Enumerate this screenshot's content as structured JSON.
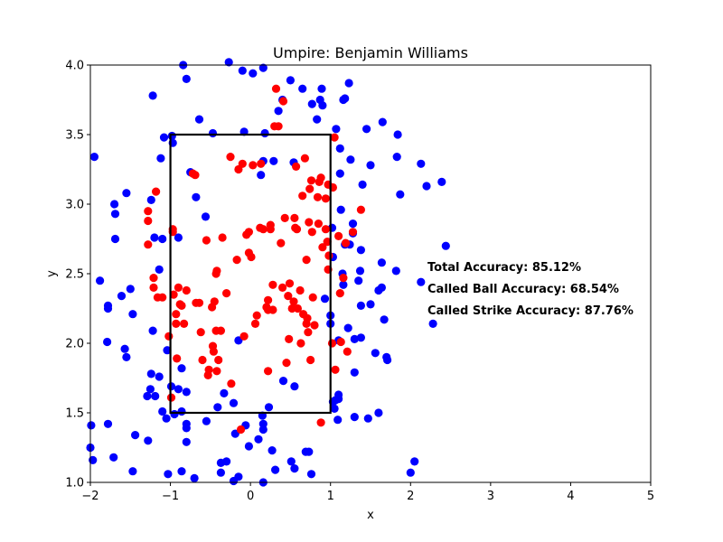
{
  "chart_data": {
    "type": "scatter",
    "title": "Umpire: Benjamin Williams",
    "xlabel": "x",
    "ylabel": "y",
    "xlim": [
      -2,
      5
    ],
    "ylim": [
      1.0,
      4.0
    ],
    "xticks": [
      "−2",
      "−1",
      "0",
      "1",
      "2",
      "3",
      "4",
      "5"
    ],
    "yticks": [
      "1.0",
      "1.5",
      "2.0",
      "2.5",
      "3.0",
      "3.5",
      "4.0"
    ],
    "grid": false,
    "strike_zone": {
      "x": [
        -1,
        1
      ],
      "y": [
        1.5,
        3.5
      ],
      "color": "#000000"
    },
    "annotations": [
      "Total Accuracy: 85.12%",
      "Called Ball Accuracy: 68.54%",
      "Called Strike Accuracy: 87.76%"
    ],
    "series": [
      {
        "color": "#0000ff",
        "points": [
          [
            -1.95,
            3.34
          ],
          [
            -1.88,
            2.45
          ],
          [
            -1.99,
            1.41
          ],
          [
            -2.0,
            1.25
          ],
          [
            -1.97,
            1.16
          ],
          [
            -1.78,
            2.27
          ],
          [
            -1.78,
            2.25
          ],
          [
            -1.79,
            2.01
          ],
          [
            -1.78,
            1.42
          ],
          [
            -1.71,
            1.18
          ],
          [
            -1.7,
            3.0
          ],
          [
            -1.69,
            2.93
          ],
          [
            -1.69,
            2.75
          ],
          [
            -1.61,
            2.34
          ],
          [
            -1.57,
            1.96
          ],
          [
            -1.55,
            1.9
          ],
          [
            -1.55,
            3.08
          ],
          [
            -1.5,
            2.39
          ],
          [
            -1.47,
            2.21
          ],
          [
            -1.44,
            1.34
          ],
          [
            -1.47,
            1.08
          ],
          [
            -1.28,
            1.3
          ],
          [
            -1.29,
            1.62
          ],
          [
            -1.25,
            1.67
          ],
          [
            -1.24,
            1.78
          ],
          [
            -1.19,
            1.62
          ],
          [
            -1.24,
            3.03
          ],
          [
            -1.22,
            3.78
          ],
          [
            -1.2,
            2.76
          ],
          [
            -1.22,
            2.09
          ],
          [
            -1.14,
            2.53
          ],
          [
            -1.14,
            1.76
          ],
          [
            -1.12,
            3.33
          ],
          [
            -1.1,
            2.75
          ],
          [
            -1.08,
            3.48
          ],
          [
            -1.1,
            1.51
          ],
          [
            -1.05,
            1.46
          ],
          [
            -1.04,
            1.95
          ],
          [
            -1.03,
            1.06
          ],
          [
            -0.99,
            1.69
          ],
          [
            -0.98,
            3.49
          ],
          [
            -0.97,
            3.44
          ],
          [
            -0.95,
            1.49
          ],
          [
            -0.9,
            2.76
          ],
          [
            -0.9,
            1.67
          ],
          [
            -0.86,
            1.82
          ],
          [
            -0.86,
            1.08
          ],
          [
            -0.86,
            1.51
          ],
          [
            -0.84,
            4.0
          ],
          [
            -0.8,
            1.65
          ],
          [
            -0.8,
            1.42
          ],
          [
            -0.8,
            1.39
          ],
          [
            -0.8,
            1.29
          ],
          [
            -0.8,
            3.9
          ],
          [
            -0.75,
            3.23
          ],
          [
            -0.7,
            1.03
          ],
          [
            -0.68,
            3.05
          ],
          [
            -0.64,
            3.61
          ],
          [
            -0.56,
            2.91
          ],
          [
            -0.55,
            1.44
          ],
          [
            -0.47,
            3.51
          ],
          [
            -0.41,
            1.54
          ],
          [
            -0.37,
            1.14
          ],
          [
            -0.37,
            1.07
          ],
          [
            -0.33,
            1.64
          ],
          [
            -0.3,
            1.15
          ],
          [
            -0.27,
            4.02
          ],
          [
            -0.21,
            1.01
          ],
          [
            -0.21,
            1.57
          ],
          [
            -0.19,
            1.35
          ],
          [
            -0.15,
            2.02
          ],
          [
            -0.15,
            1.04
          ],
          [
            -0.1,
            3.96
          ],
          [
            -0.08,
            3.52
          ],
          [
            -0.06,
            1.41
          ],
          [
            -0.02,
            1.26
          ],
          [
            0.03,
            3.94
          ],
          [
            0.1,
            1.31
          ],
          [
            0.13,
            3.21
          ],
          [
            0.15,
            1.48
          ],
          [
            0.16,
            1.42
          ],
          [
            0.16,
            1.38
          ],
          [
            0.16,
            3.31
          ],
          [
            0.16,
            3.98
          ],
          [
            0.16,
            1.0
          ],
          [
            0.18,
            3.51
          ],
          [
            0.23,
            1.54
          ],
          [
            0.27,
            1.23
          ],
          [
            0.29,
            3.31
          ],
          [
            0.31,
            1.09
          ],
          [
            0.35,
            3.67
          ],
          [
            0.4,
            3.75
          ],
          [
            0.41,
            1.73
          ],
          [
            0.5,
            3.89
          ],
          [
            0.51,
            1.15
          ],
          [
            0.54,
            3.3
          ],
          [
            0.55,
            1.1
          ],
          [
            0.55,
            1.69
          ],
          [
            0.65,
            3.83
          ],
          [
            0.69,
            1.22
          ],
          [
            0.73,
            1.22
          ],
          [
            0.76,
            1.06
          ],
          [
            0.77,
            3.72
          ],
          [
            0.83,
            3.61
          ],
          [
            0.87,
            3.75
          ],
          [
            0.89,
            3.83
          ],
          [
            0.9,
            3.71
          ],
          [
            0.93,
            2.32
          ],
          [
            1.0,
            2.14
          ],
          [
            1.0,
            2.2
          ],
          [
            1.02,
            2.83
          ],
          [
            1.03,
            2.62
          ],
          [
            1.03,
            1.58
          ],
          [
            1.05,
            1.53
          ],
          [
            1.06,
            1.59
          ],
          [
            1.07,
            3.54
          ],
          [
            1.09,
            1.45
          ],
          [
            1.1,
            2.02
          ],
          [
            1.1,
            1.6
          ],
          [
            1.1,
            1.63
          ],
          [
            1.12,
            3.4
          ],
          [
            1.12,
            3.22
          ],
          [
            1.13,
            2.96
          ],
          [
            1.15,
            2.5
          ],
          [
            1.16,
            2.42
          ],
          [
            1.16,
            3.75
          ],
          [
            1.18,
            3.76
          ],
          [
            1.18,
            2.71
          ],
          [
            1.22,
            2.11
          ],
          [
            1.23,
            3.87
          ],
          [
            1.24,
            2.71
          ],
          [
            1.25,
            3.32
          ],
          [
            1.28,
            2.86
          ],
          [
            1.28,
            2.79
          ],
          [
            1.3,
            2.03
          ],
          [
            1.3,
            1.79
          ],
          [
            1.3,
            1.47
          ],
          [
            1.35,
            2.45
          ],
          [
            1.37,
            2.52
          ],
          [
            1.38,
            2.04
          ],
          [
            1.38,
            2.27
          ],
          [
            1.38,
            2.67
          ],
          [
            1.4,
            3.14
          ],
          [
            1.45,
            3.54
          ],
          [
            1.47,
            1.46
          ],
          [
            1.5,
            3.28
          ],
          [
            1.5,
            2.28
          ],
          [
            1.56,
            1.93
          ],
          [
            1.6,
            1.5
          ],
          [
            1.6,
            2.38
          ],
          [
            1.64,
            2.4
          ],
          [
            1.64,
            2.58
          ],
          [
            1.65,
            3.59
          ],
          [
            1.67,
            2.17
          ],
          [
            1.7,
            1.9
          ],
          [
            1.71,
            1.88
          ],
          [
            1.82,
            2.52
          ],
          [
            1.83,
            3.34
          ],
          [
            1.84,
            3.5
          ],
          [
            1.87,
            3.07
          ],
          [
            2.0,
            1.07
          ],
          [
            2.05,
            1.15
          ],
          [
            2.13,
            3.29
          ],
          [
            2.13,
            2.44
          ],
          [
            2.2,
            3.13
          ],
          [
            2.28,
            2.14
          ],
          [
            2.39,
            3.16
          ],
          [
            2.44,
            2.7
          ]
        ]
      },
      {
        "color": "#ff0000",
        "points": [
          [
            -1.28,
            2.71
          ],
          [
            -1.28,
            2.88
          ],
          [
            -1.28,
            2.95
          ],
          [
            -1.21,
            2.4
          ],
          [
            -1.21,
            2.47
          ],
          [
            -1.18,
            3.09
          ],
          [
            -1.16,
            2.33
          ],
          [
            -1.1,
            2.33
          ],
          [
            -1.02,
            2.05
          ],
          [
            -0.99,
            1.61
          ],
          [
            -0.97,
            2.82
          ],
          [
            -0.97,
            2.8
          ],
          [
            -0.96,
            2.35
          ],
          [
            -0.93,
            2.14
          ],
          [
            -0.93,
            2.21
          ],
          [
            -0.92,
            1.89
          ],
          [
            -0.9,
            2.4
          ],
          [
            -0.88,
            2.28
          ],
          [
            -0.86,
            2.27
          ],
          [
            -0.83,
            2.14
          ],
          [
            -0.8,
            2.38
          ],
          [
            -0.72,
            3.22
          ],
          [
            -0.69,
            3.21
          ],
          [
            -0.68,
            2.29
          ],
          [
            -0.64,
            2.29
          ],
          [
            -0.62,
            2.08
          ],
          [
            -0.6,
            1.88
          ],
          [
            -0.55,
            2.74
          ],
          [
            -0.53,
            1.77
          ],
          [
            -0.52,
            1.81
          ],
          [
            -0.48,
            2.26
          ],
          [
            -0.47,
            1.98
          ],
          [
            -0.46,
            1.94
          ],
          [
            -0.45,
            2.3
          ],
          [
            -0.43,
            2.5
          ],
          [
            -0.43,
            2.09
          ],
          [
            -0.42,
            2.52
          ],
          [
            -0.42,
            1.8
          ],
          [
            -0.4,
            1.88
          ],
          [
            -0.37,
            2.09
          ],
          [
            -0.35,
            2.76
          ],
          [
            -0.3,
            2.36
          ],
          [
            -0.24,
            1.71
          ],
          [
            -0.17,
            2.6
          ],
          [
            -0.15,
            3.25
          ],
          [
            -0.1,
            3.29
          ],
          [
            -0.12,
            1.38
          ],
          [
            -0.08,
            2.05
          ],
          [
            -0.05,
            2.78
          ],
          [
            -0.02,
            2.8
          ],
          [
            -0.02,
            2.65
          ],
          [
            0.01,
            2.62
          ],
          [
            0.03,
            3.28
          ],
          [
            0.06,
            2.14
          ],
          [
            0.08,
            2.2
          ],
          [
            0.12,
            2.83
          ],
          [
            0.13,
            3.29
          ],
          [
            0.16,
            2.82
          ],
          [
            0.2,
            2.26
          ],
          [
            0.22,
            2.24
          ],
          [
            0.22,
            2.31
          ],
          [
            0.22,
            1.8
          ],
          [
            0.25,
            2.82
          ],
          [
            0.25,
            2.85
          ],
          [
            0.28,
            2.24
          ],
          [
            0.28,
            2.42
          ],
          [
            0.3,
            3.56
          ],
          [
            0.32,
            3.83
          ],
          [
            0.35,
            3.56
          ],
          [
            0.38,
            2.72
          ],
          [
            0.41,
            3.74
          ],
          [
            0.43,
            2.9
          ],
          [
            0.45,
            1.86
          ],
          [
            0.47,
            2.34
          ],
          [
            0.48,
            2.03
          ],
          [
            0.49,
            2.43
          ],
          [
            0.52,
            2.25
          ],
          [
            0.54,
            2.3
          ],
          [
            0.56,
            2.83
          ],
          [
            0.57,
            3.27
          ],
          [
            0.58,
            2.82
          ],
          [
            0.59,
            2.25
          ],
          [
            0.62,
            2.38
          ],
          [
            0.63,
            2.0
          ],
          [
            0.65,
            3.06
          ],
          [
            0.66,
            2.21
          ],
          [
            0.68,
            3.33
          ],
          [
            0.7,
            2.6
          ],
          [
            0.71,
            2.18
          ],
          [
            0.72,
            2.08
          ],
          [
            0.73,
            2.87
          ],
          [
            0.74,
            3.11
          ],
          [
            0.75,
            1.88
          ],
          [
            0.76,
            3.17
          ],
          [
            0.77,
            2.8
          ],
          [
            0.78,
            2.33
          ],
          [
            0.8,
            2.13
          ],
          [
            0.84,
            3.05
          ],
          [
            0.85,
            2.86
          ],
          [
            0.86,
            3.16
          ],
          [
            0.88,
            3.19
          ],
          [
            0.88,
            1.43
          ],
          [
            0.9,
            2.69
          ],
          [
            0.94,
            2.82
          ],
          [
            0.94,
            3.04
          ],
          [
            0.96,
            2.73
          ],
          [
            0.97,
            3.14
          ],
          [
            0.97,
            2.53
          ],
          [
            0.98,
            2.63
          ],
          [
            1.02,
            2.0
          ],
          [
            1.03,
            3.12
          ],
          [
            1.05,
            3.48
          ],
          [
            1.06,
            1.81
          ],
          [
            1.1,
            2.77
          ],
          [
            1.12,
            2.36
          ],
          [
            1.13,
            2.01
          ],
          [
            1.16,
            2.47
          ],
          [
            1.19,
            2.72
          ],
          [
            1.21,
            1.94
          ],
          [
            1.28,
            2.8
          ],
          [
            1.38,
            2.96
          ],
          [
            0.7,
            2.14
          ],
          [
            -0.25,
            3.34
          ],
          [
            0.4,
            2.4
          ],
          [
            0.55,
            2.9
          ]
        ]
      }
    ]
  }
}
